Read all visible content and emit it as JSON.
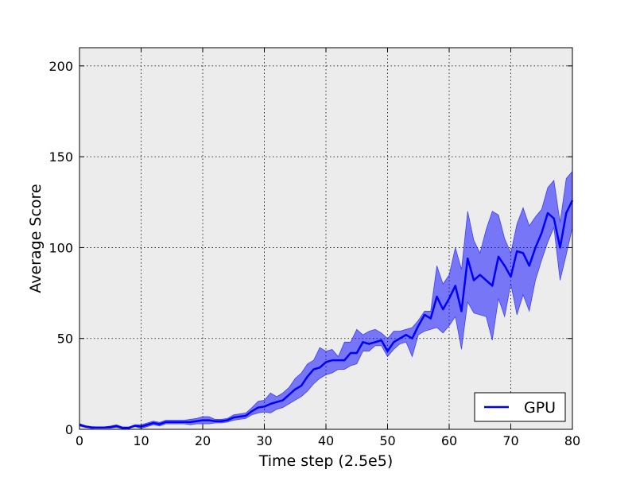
{
  "chart_data": {
    "type": "line",
    "xlabel": "Time step (2.5e5)",
    "ylabel": "Average Score",
    "xlim": [
      0,
      80
    ],
    "ylim": [
      0,
      210
    ],
    "xticks": [
      "0",
      "10",
      "20",
      "30",
      "40",
      "50",
      "60",
      "70",
      "80"
    ],
    "yticks": [
      "0",
      "50",
      "100",
      "150",
      "200"
    ],
    "grid": true,
    "legend_position": "bottom-right",
    "plot_background": "#ececec",
    "series": [
      {
        "name": "GPU",
        "color": "#0000ff",
        "band_color": "#0000ff",
        "x": [
          0,
          1,
          2,
          3,
          4,
          5,
          6,
          7,
          8,
          9,
          10,
          11,
          12,
          13,
          14,
          15,
          16,
          17,
          18,
          19,
          20,
          21,
          22,
          23,
          24,
          25,
          26,
          27,
          28,
          29,
          30,
          31,
          32,
          33,
          34,
          35,
          36,
          37,
          38,
          39,
          40,
          41,
          42,
          43,
          44,
          45,
          46,
          47,
          48,
          49,
          50,
          51,
          52,
          53,
          54,
          55,
          56,
          57,
          58,
          59,
          60,
          61,
          62,
          63,
          64,
          65,
          66,
          67,
          68,
          69,
          70,
          71,
          72,
          73,
          74,
          75,
          76,
          77,
          78,
          79,
          80
        ],
        "values": [
          2.5,
          1.5,
          1,
          1,
          1,
          1.2,
          1.8,
          0.8,
          0.8,
          2,
          1.5,
          2.5,
          3.5,
          2.8,
          4,
          4,
          4,
          4,
          4,
          4.5,
          5,
          5,
          4.5,
          4.5,
          5,
          6.5,
          7,
          7.5,
          10,
          12,
          12.5,
          14,
          15,
          16,
          19,
          22,
          24,
          29,
          33,
          34,
          37,
          38,
          38,
          38,
          42,
          42,
          48,
          47,
          48,
          49,
          43,
          48,
          50,
          52,
          50,
          57,
          63,
          61,
          73,
          66,
          72,
          79,
          65,
          94,
          82,
          85,
          82,
          79,
          95,
          90,
          84,
          98,
          97,
          90,
          100,
          108,
          119,
          116,
          100,
          119,
          126
        ],
        "upper": [
          3.2,
          2,
          1.5,
          1.3,
          1.3,
          1.8,
          2.5,
          1.3,
          1.3,
          2.5,
          2.5,
          3.5,
          4.5,
          3.8,
          5,
          5,
          5,
          5,
          5.5,
          6,
          7,
          7,
          5.5,
          5.5,
          6,
          8,
          8.5,
          9,
          12,
          15.5,
          16,
          20,
          18,
          20,
          23,
          28,
          31,
          36,
          38,
          45,
          43,
          44,
          40,
          48,
          48,
          55,
          52,
          54,
          55,
          53,
          50,
          54,
          54,
          55,
          56,
          60,
          65,
          65,
          90,
          80,
          85,
          100,
          88,
          120,
          104,
          97,
          110,
          120,
          118,
          105,
          97,
          113,
          122,
          112,
          117,
          121,
          133,
          137,
          114,
          138,
          142
        ],
        "lower": [
          1.8,
          1,
          0.5,
          0.7,
          0.7,
          0.6,
          1.1,
          0.3,
          0.3,
          1.5,
          0.5,
          1.5,
          2.5,
          1.8,
          3,
          3,
          3,
          3,
          2.5,
          3,
          3,
          3,
          3.5,
          3.5,
          4,
          5,
          5.5,
          6,
          8,
          9,
          9.5,
          9,
          11,
          12,
          14,
          16,
          18,
          21,
          25,
          28,
          30,
          31,
          33,
          33,
          35,
          36,
          43,
          43,
          46,
          46,
          40,
          44,
          47,
          48,
          40,
          52,
          54,
          55,
          56,
          53,
          57,
          62,
          44,
          70,
          64,
          63,
          62,
          49,
          72,
          62,
          80,
          63,
          74,
          65,
          82,
          93,
          103,
          111,
          82,
          96,
          111
        ]
      }
    ]
  }
}
